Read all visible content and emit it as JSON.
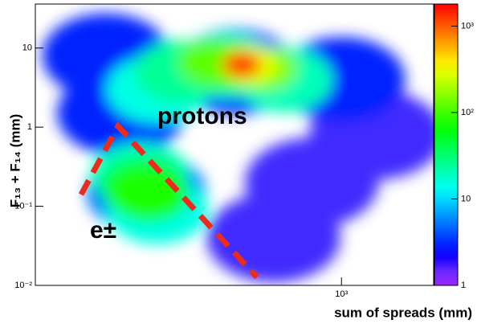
{
  "chart_data": {
    "type": "heatmap2d",
    "xlabel": "sum of spreads (mm)",
    "ylabel": "F₁₃ + F₁₄  (mm)",
    "annotations": [
      "protons",
      "e±"
    ],
    "xlog": true,
    "ylog": true,
    "zlog": true,
    "xlim": [
      100,
      2000
    ],
    "ylim": [
      0.01,
      36
    ],
    "zlim": [
      1,
      1800
    ],
    "xticks": [
      {
        "value": 1000,
        "label": "10³"
      }
    ],
    "yticks": [
      {
        "value": 0.01,
        "label": "10⁻²"
      },
      {
        "value": 0.1,
        "label": "10⁻¹"
      },
      1,
      10
    ],
    "zticks": [
      1,
      10,
      {
        "value": 100,
        "label": "10²"
      },
      {
        "value": 1000,
        "label": "10³"
      }
    ],
    "x": [
      450,
      1300,
      170,
      800,
      600,
      190,
      1000,
      420,
      300,
      650,
      250,
      430,
      560,
      380,
      500,
      470,
      480,
      230,
      220,
      250,
      225,
      230,
      235
    ],
    "y": [
      5,
      0.8,
      8,
      0.2,
      0.04,
      1.5,
      4,
      6,
      5,
      4,
      3,
      6,
      5.5,
      6.5,
      6,
      6.2,
      6,
      0.15,
      0.25,
      0.09,
      0.18,
      0.15,
      0.14
    ],
    "values": [
      3,
      2,
      3,
      2,
      2,
      3,
      3,
      20,
      25,
      20,
      15,
      100,
      150,
      120,
      300,
      800,
      1300,
      5,
      20,
      15,
      40,
      80,
      60
    ]
  }
}
